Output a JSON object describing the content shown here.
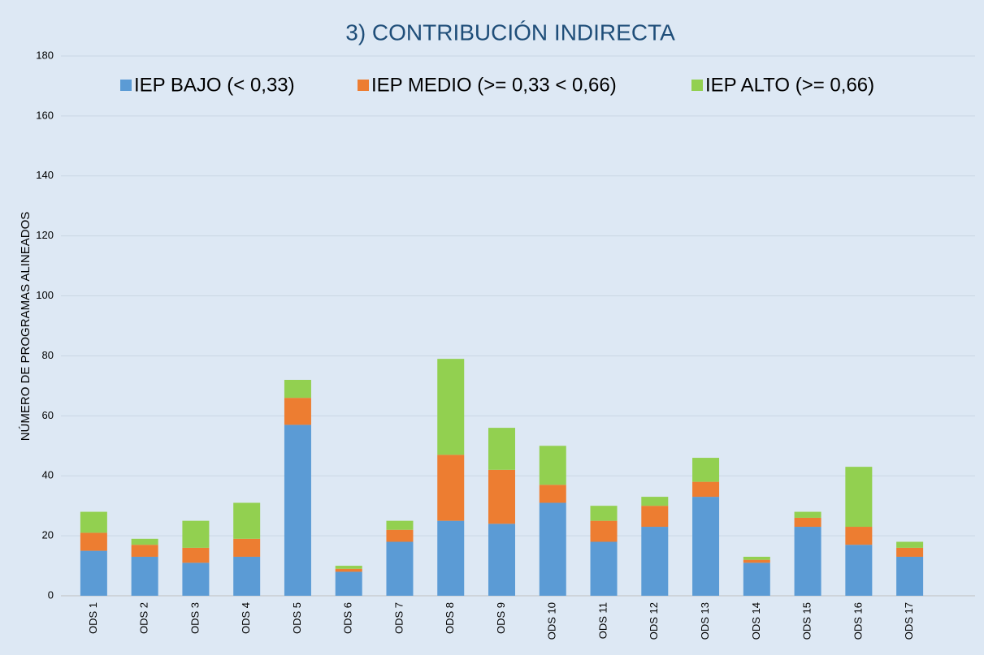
{
  "chart_data": {
    "type": "bar",
    "stacked": true,
    "title": "3) CONTRIBUCIÓN INDIRECTA",
    "y_label": "NÚMERO DE PROGRAMAS ALINEADOS",
    "categories": [
      "ODS 1",
      "ODS 2",
      "ODS 3",
      "ODS 4",
      "ODS 5",
      "ODS 6",
      "ODS 7",
      "ODS 8",
      "ODS 9",
      "ODS 10",
      "ODS 11",
      "ODS 12",
      "ODS 13",
      "ODS 14",
      "ODS 15",
      "ODS 16",
      "ODS 17"
    ],
    "series": [
      {
        "name": "IEP BAJO (< 0,33)",
        "color": "#5b9bd5",
        "values": [
          15,
          13,
          11,
          13,
          57,
          8,
          18,
          25,
          24,
          31,
          18,
          23,
          33,
          11,
          23,
          17,
          13
        ]
      },
      {
        "name": "IEP MEDIO (>= 0,33 < 0,66)",
        "color": "#ed7d31",
        "values": [
          6,
          4,
          5,
          6,
          9,
          1,
          4,
          22,
          18,
          6,
          7,
          7,
          5,
          1,
          3,
          6,
          3
        ]
      },
      {
        "name": "IEP ALTO (>= 0,66)",
        "color": "#92d050",
        "values": [
          7,
          2,
          9,
          12,
          6,
          1,
          3,
          32,
          14,
          13,
          5,
          3,
          8,
          1,
          2,
          20,
          2
        ]
      }
    ],
    "ylim": [
      0,
      180
    ],
    "yticks": [
      0,
      20,
      40,
      60,
      80,
      100,
      120,
      140,
      160,
      180
    ],
    "grid": true,
    "legend": "top"
  }
}
